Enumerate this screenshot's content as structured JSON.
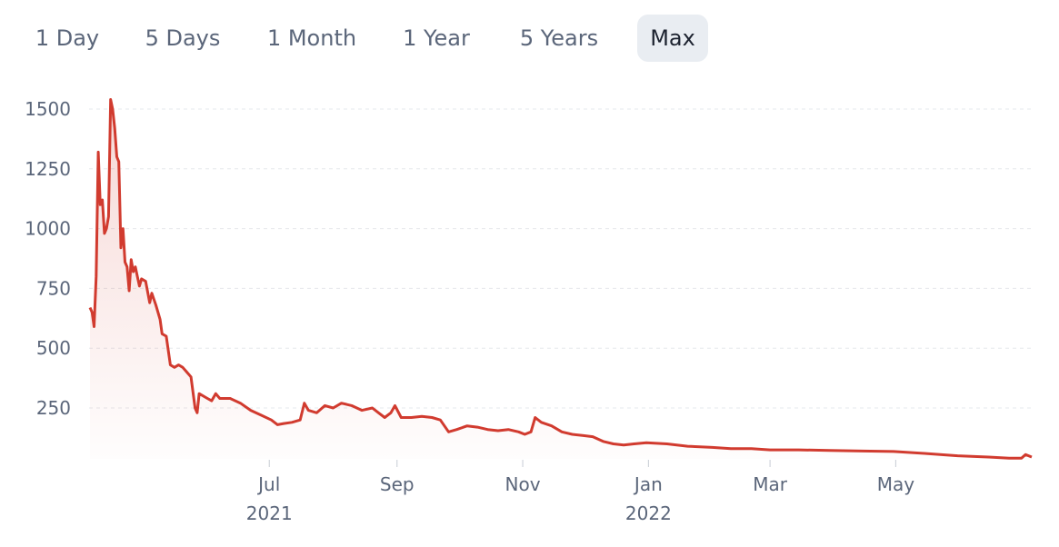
{
  "range_selector": {
    "options": [
      "1 Day",
      "5 Days",
      "1 Month",
      "1 Year",
      "5 Years",
      "Max"
    ],
    "selected": "Max"
  },
  "chart_data": {
    "type": "area",
    "title": "",
    "xlabel": "",
    "ylabel": "",
    "ylim": [
      0,
      1600
    ],
    "y_ticks": [
      250,
      500,
      750,
      1000,
      1250,
      1500
    ],
    "x_ticks": [
      {
        "label": "Jul",
        "sub": "2021",
        "date": "2021-07-01"
      },
      {
        "label": "Sep",
        "sub": "",
        "date": "2021-09-01"
      },
      {
        "label": "Nov",
        "sub": "",
        "date": "2021-11-01"
      },
      {
        "label": "Jan",
        "sub": "2022",
        "date": "2022-01-01"
      },
      {
        "label": "Mar",
        "sub": "",
        "date": "2022-03-01"
      },
      {
        "label": "May",
        "sub": "",
        "date": "2022-05-01"
      }
    ],
    "grid": true,
    "line_color": "#d13b2f",
    "series": [
      {
        "points": [
          [
            "2021-04-05",
            670
          ],
          [
            "2021-04-06",
            650
          ],
          [
            "2021-04-07",
            590
          ],
          [
            "2021-04-08",
            800
          ],
          [
            "2021-04-09",
            1320
          ],
          [
            "2021-04-10",
            1100
          ],
          [
            "2021-04-11",
            1120
          ],
          [
            "2021-04-12",
            980
          ],
          [
            "2021-04-13",
            1000
          ],
          [
            "2021-04-14",
            1050
          ],
          [
            "2021-04-15",
            1540
          ],
          [
            "2021-04-16",
            1500
          ],
          [
            "2021-04-17",
            1420
          ],
          [
            "2021-04-18",
            1300
          ],
          [
            "2021-04-19",
            1280
          ],
          [
            "2021-04-20",
            920
          ],
          [
            "2021-04-21",
            1000
          ],
          [
            "2021-04-22",
            860
          ],
          [
            "2021-04-23",
            840
          ],
          [
            "2021-04-24",
            740
          ],
          [
            "2021-04-25",
            870
          ],
          [
            "2021-04-26",
            820
          ],
          [
            "2021-04-27",
            840
          ],
          [
            "2021-04-28",
            800
          ],
          [
            "2021-04-29",
            760
          ],
          [
            "2021-04-30",
            790
          ],
          [
            "2021-05-02",
            780
          ],
          [
            "2021-05-04",
            690
          ],
          [
            "2021-05-05",
            730
          ],
          [
            "2021-05-07",
            680
          ],
          [
            "2021-05-09",
            620
          ],
          [
            "2021-05-10",
            560
          ],
          [
            "2021-05-12",
            550
          ],
          [
            "2021-05-14",
            430
          ],
          [
            "2021-05-16",
            420
          ],
          [
            "2021-05-18",
            430
          ],
          [
            "2021-05-20",
            420
          ],
          [
            "2021-05-22",
            400
          ],
          [
            "2021-05-24",
            380
          ],
          [
            "2021-05-26",
            250
          ],
          [
            "2021-05-27",
            230
          ],
          [
            "2021-05-28",
            310
          ],
          [
            "2021-06-01",
            290
          ],
          [
            "2021-06-03",
            280
          ],
          [
            "2021-06-05",
            310
          ],
          [
            "2021-06-07",
            290
          ],
          [
            "2021-06-12",
            290
          ],
          [
            "2021-06-17",
            270
          ],
          [
            "2021-06-22",
            240
          ],
          [
            "2021-06-27",
            220
          ],
          [
            "2021-07-02",
            200
          ],
          [
            "2021-07-05",
            180
          ],
          [
            "2021-07-08",
            185
          ],
          [
            "2021-07-12",
            190
          ],
          [
            "2021-07-16",
            200
          ],
          [
            "2021-07-18",
            270
          ],
          [
            "2021-07-20",
            240
          ],
          [
            "2021-07-24",
            230
          ],
          [
            "2021-07-28",
            260
          ],
          [
            "2021-08-01",
            250
          ],
          [
            "2021-08-05",
            270
          ],
          [
            "2021-08-10",
            260
          ],
          [
            "2021-08-15",
            240
          ],
          [
            "2021-08-20",
            250
          ],
          [
            "2021-08-23",
            230
          ],
          [
            "2021-08-26",
            210
          ],
          [
            "2021-08-29",
            230
          ],
          [
            "2021-08-31",
            260
          ],
          [
            "2021-09-03",
            210
          ],
          [
            "2021-09-08",
            210
          ],
          [
            "2021-09-13",
            215
          ],
          [
            "2021-09-18",
            210
          ],
          [
            "2021-09-22",
            200
          ],
          [
            "2021-09-26",
            150
          ],
          [
            "2021-09-30",
            160
          ],
          [
            "2021-10-05",
            175
          ],
          [
            "2021-10-10",
            170
          ],
          [
            "2021-10-15",
            160
          ],
          [
            "2021-10-20",
            155
          ],
          [
            "2021-10-25",
            160
          ],
          [
            "2021-10-30",
            150
          ],
          [
            "2021-11-02",
            140
          ],
          [
            "2021-11-05",
            150
          ],
          [
            "2021-11-07",
            210
          ],
          [
            "2021-11-10",
            190
          ],
          [
            "2021-11-15",
            175
          ],
          [
            "2021-11-20",
            150
          ],
          [
            "2021-11-25",
            140
          ],
          [
            "2021-11-30",
            135
          ],
          [
            "2021-12-05",
            130
          ],
          [
            "2021-12-10",
            110
          ],
          [
            "2021-12-15",
            100
          ],
          [
            "2021-12-20",
            95
          ],
          [
            "2021-12-25",
            100
          ],
          [
            "2021-12-31",
            105
          ],
          [
            "2022-01-10",
            100
          ],
          [
            "2022-01-20",
            90
          ],
          [
            "2022-02-01",
            85
          ],
          [
            "2022-02-10",
            80
          ],
          [
            "2022-02-20",
            80
          ],
          [
            "2022-03-01",
            75
          ],
          [
            "2022-03-15",
            75
          ],
          [
            "2022-03-30",
            72
          ],
          [
            "2022-04-15",
            70
          ],
          [
            "2022-04-30",
            68
          ],
          [
            "2022-05-15",
            60
          ],
          [
            "2022-05-31",
            50
          ],
          [
            "2022-06-15",
            45
          ],
          [
            "2022-06-25",
            40
          ],
          [
            "2022-07-01",
            40
          ],
          [
            "2022-07-03",
            55
          ],
          [
            "2022-07-06",
            45
          ]
        ]
      }
    ]
  }
}
